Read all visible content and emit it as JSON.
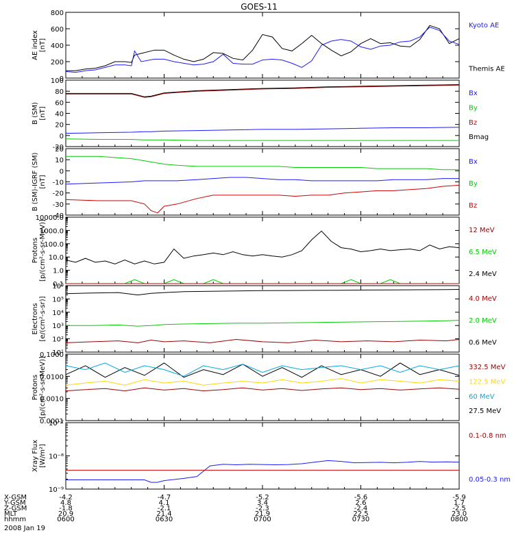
{
  "title": "GOES-11",
  "date_label": "2008 Jan 19",
  "footer": {
    "row_labels": [
      "X-GSM",
      "Y-GSM",
      "Z-GSM",
      "MLT",
      "hhmm"
    ],
    "columns": [
      [
        "-4.2",
        "4.8",
        "-1.8",
        "20.9",
        "0600"
      ],
      [
        "-4.7",
        "4.1",
        "-2.1",
        "21.4",
        "0630"
      ],
      [
        "-5.2",
        "3.4",
        "-2.3",
        "21.9",
        "0700"
      ],
      [
        "-5.6",
        "2.6",
        "-2.4",
        "22.5",
        "0730"
      ],
      [
        "-5.9",
        "1.7",
        "-2.5",
        "23.0",
        "0800"
      ]
    ]
  },
  "colors": {
    "black": "#000000",
    "blue": "#1a1aff",
    "green": "#00cc00",
    "red": "#cc0000",
    "darkred": "#990000",
    "yellow": "#ffd700",
    "cyan": "#00aadd"
  },
  "chart_data": [
    {
      "type": "line",
      "ylabel": [
        "AE index",
        "[nT]"
      ],
      "ylim": [
        0,
        800
      ],
      "yticks": [
        "0",
        "200",
        "400",
        "600",
        "800"
      ],
      "x": [
        0,
        3,
        6,
        9,
        12,
        15,
        18,
        20,
        21,
        23,
        27,
        30,
        33,
        36,
        39,
        42,
        45,
        48,
        51,
        54,
        57,
        60,
        63,
        66,
        69,
        72,
        75,
        78,
        81,
        84,
        87,
        90,
        93,
        96,
        99,
        102,
        105,
        108,
        111,
        114,
        117,
        120
      ],
      "series": [
        {
          "name": "Themis AE",
          "color": "black",
          "values": [
            90,
            90,
            110,
            120,
            150,
            200,
            200,
            190,
            280,
            300,
            340,
            340,
            280,
            230,
            200,
            230,
            310,
            300,
            240,
            220,
            340,
            530,
            500,
            360,
            330,
            420,
            520,
            420,
            340,
            270,
            320,
            420,
            480,
            420,
            430,
            390,
            380,
            470,
            640,
            600,
            420,
            480
          ]
        },
        {
          "name": "Kyoto AE",
          "color": "blue",
          "values": [
            80,
            70,
            90,
            100,
            130,
            160,
            160,
            150,
            330,
            200,
            230,
            230,
            200,
            180,
            160,
            170,
            200,
            290,
            180,
            170,
            170,
            220,
            230,
            220,
            180,
            130,
            210,
            400,
            450,
            470,
            450,
            380,
            350,
            390,
            400,
            440,
            450,
            500,
            620,
            580,
            450,
            410
          ]
        }
      ]
    },
    {
      "type": "line",
      "ylabel": [
        "B (SM)",
        "[nT]"
      ],
      "ylim": [
        -20,
        100
      ],
      "yticks": [
        "-20",
        "0",
        "20",
        "40",
        "60",
        "80",
        "100"
      ],
      "x": [
        0,
        10,
        20,
        24,
        26,
        30,
        40,
        50,
        60,
        70,
        80,
        90,
        100,
        110,
        120
      ],
      "series": [
        {
          "name": "Bmag",
          "color": "black",
          "values": [
            76,
            76,
            76,
            70,
            71,
            77,
            81,
            83,
            85,
            86,
            88,
            89,
            90,
            91,
            92
          ]
        },
        {
          "name": "Bz",
          "color": "darkred",
          "values": [
            75,
            75,
            75,
            69,
            70,
            76,
            80,
            82,
            84,
            85,
            87,
            88,
            89,
            90,
            91
          ]
        },
        {
          "name": "Bx",
          "color": "blue",
          "values": [
            4,
            5,
            6,
            7,
            7,
            8,
            9,
            10,
            11,
            11,
            12,
            13,
            14,
            14,
            15
          ]
        },
        {
          "name": "By",
          "color": "green",
          "values": [
            -6,
            -7,
            -7,
            -8,
            -8,
            -8,
            -9,
            -9,
            -9,
            -9,
            -9,
            -9,
            -9,
            -9,
            -9
          ]
        }
      ],
      "legend": [
        {
          "label": "Bx",
          "color": "blue"
        },
        {
          "label": "By",
          "color": "green"
        },
        {
          "label": "Bz",
          "color": "red"
        },
        {
          "label": "Bmag",
          "color": "black"
        }
      ]
    },
    {
      "type": "line",
      "ylabel": [
        "B (SM)-IGRF (SM)",
        "[nT]"
      ],
      "ylim": [
        -40,
        20
      ],
      "yticks": [
        "-40",
        "-30",
        "-20",
        "-10",
        "0",
        "10",
        "20"
      ],
      "x": [
        0,
        10,
        20,
        24,
        26,
        28,
        30,
        34,
        40,
        45,
        50,
        55,
        60,
        65,
        70,
        75,
        80,
        85,
        90,
        95,
        100,
        105,
        110,
        115,
        120
      ],
      "series": [
        {
          "name": "By",
          "color": "green",
          "values": [
            13,
            13,
            11,
            9,
            8,
            7,
            6,
            5,
            4,
            4,
            4,
            4,
            4,
            4,
            3,
            3,
            3,
            3,
            3,
            2,
            2,
            2,
            2,
            1,
            1
          ]
        },
        {
          "name": "Bx",
          "color": "blue",
          "values": [
            -12,
            -11,
            -10,
            -9,
            -9,
            -9,
            -9,
            -9,
            -8,
            -7,
            -6,
            -6,
            -7,
            -8,
            -8,
            -9,
            -9,
            -9,
            -9,
            -9,
            -8,
            -8,
            -8,
            -7,
            -7
          ]
        },
        {
          "name": "Bz",
          "color": "red",
          "values": [
            -26,
            -27,
            -27,
            -30,
            -36,
            -38,
            -32,
            -30,
            -25,
            -22,
            -22,
            -22,
            -22,
            -22,
            -23,
            -22,
            -22,
            -20,
            -19,
            -18,
            -18,
            -17,
            -16,
            -14,
            -13
          ]
        }
      ],
      "legend": [
        {
          "label": "Bx",
          "color": "blue"
        },
        {
          "label": "By",
          "color": "green"
        },
        {
          "label": "Bz",
          "color": "red"
        }
      ]
    },
    {
      "type": "line",
      "scale": "log",
      "ylabel": [
        "Protons",
        "[p/(cm²-s-sr-MeV)]"
      ],
      "ylim": [
        0.1,
        10000
      ],
      "yticks": [
        "0.1",
        "1.0",
        "10.0",
        "100.0",
        "1000.0",
        "10000.0"
      ],
      "x": [
        0,
        3,
        6,
        9,
        12,
        15,
        18,
        21,
        24,
        27,
        30,
        33,
        36,
        39,
        42,
        45,
        48,
        51,
        54,
        57,
        60,
        63,
        66,
        69,
        72,
        75,
        78,
        81,
        84,
        87,
        90,
        93,
        96,
        99,
        102,
        105,
        108,
        111,
        114,
        117,
        120
      ],
      "series": [
        {
          "name": "2.4 MeV",
          "color": "black",
          "values": [
            6,
            4,
            8,
            4,
            5,
            3,
            6,
            3,
            5,
            3,
            4,
            40,
            8,
            12,
            15,
            20,
            15,
            25,
            15,
            12,
            15,
            12,
            10,
            15,
            30,
            200,
            900,
            150,
            50,
            40,
            25,
            30,
            40,
            30,
            35,
            40,
            30,
            80,
            40,
            60,
            50
          ]
        },
        {
          "name": "6.5 MeV",
          "color": "green",
          "values": [
            0.1,
            0.1,
            0.1,
            0.1,
            0.1,
            0.1,
            0.1,
            0.2,
            0.1,
            0.1,
            0.1,
            0.2,
            0.1,
            0.1,
            0.1,
            0.2,
            0.1,
            0.1,
            0.1,
            0.1,
            0.1,
            0.1,
            0.1,
            0.1,
            0.1,
            0.1,
            0.1,
            0.1,
            0.1,
            0.2,
            0.1,
            0.1,
            0.1,
            0.2,
            0.1,
            0.1,
            0.1,
            0.1,
            0.1,
            0.1,
            0.1
          ]
        },
        {
          "name": "12 MeV",
          "color": "red",
          "values": [
            0.1,
            0.1,
            0.1,
            0.1,
            0.1,
            0.1,
            0.1,
            0.1,
            0.1,
            0.1,
            0.1,
            0.1,
            0.1,
            0.1,
            0.1,
            0.1,
            0.1,
            0.1,
            0.1,
            0.1,
            0.1,
            0.1,
            0.1,
            0.1,
            0.1,
            0.1,
            0.1,
            0.1,
            0.1,
            0.1,
            0.1,
            0.1,
            0.1,
            0.1,
            0.1,
            0.1,
            0.1,
            0.1,
            0.1,
            0.1,
            0.1
          ]
        }
      ],
      "legend": [
        {
          "label": "12 MeV",
          "color": "darkred"
        },
        {
          "label": "6.5 MeV",
          "color": "green"
        },
        {
          "label": "2.4 MeV",
          "color": "black"
        }
      ]
    },
    {
      "type": "line",
      "scale": "log",
      "ylabel": [
        "Electrons",
        "[e/(cm²-s-sr)]"
      ],
      "ylim": [
        10,
        1000000
      ],
      "yticks": [
        "10¹",
        "10²",
        "10³",
        "10⁴",
        "10⁵",
        "10⁶"
      ],
      "x": [
        0,
        8,
        16,
        22,
        26,
        30,
        36,
        44,
        52,
        60,
        68,
        76,
        84,
        92,
        100,
        108,
        116,
        120
      ],
      "series": [
        {
          "name": "0.6 MeV",
          "color": "black",
          "values": [
            250000,
            280000,
            300000,
            200000,
            260000,
            300000,
            350000,
            380000,
            400000,
            420000,
            430000,
            440000,
            450000,
            470000,
            480000,
            490000,
            500000,
            520000
          ]
        },
        {
          "name": "2.0 MeV",
          "color": "green",
          "values": [
            1000,
            1000,
            1100,
            900,
            1000,
            1200,
            1300,
            1400,
            1500,
            1500,
            1600,
            1700,
            1800,
            1900,
            2000,
            2100,
            2300,
            2500
          ]
        },
        {
          "name": "4.0 MeV",
          "color": "darkred",
          "values": [
            50,
            60,
            70,
            50,
            80,
            60,
            70,
            50,
            90,
            60,
            50,
            80,
            60,
            70,
            60,
            80,
            70,
            90
          ]
        }
      ],
      "legend": [
        {
          "label": "4.0 MeV",
          "color": "darkred"
        },
        {
          "label": "2.0 MeV",
          "color": "green"
        },
        {
          "label": "0.6 MeV",
          "color": "black"
        }
      ]
    },
    {
      "type": "line",
      "scale": "log",
      "ylabel": [
        "Protons",
        "[p/(cm²-s-sr-MeV)]"
      ],
      "ylim": [
        0.0001,
        0.1
      ],
      "yticks": [
        "0.0001",
        "0.0010",
        "0.0100",
        "0.1000"
      ],
      "x": [
        0,
        6,
        12,
        18,
        24,
        30,
        36,
        42,
        48,
        54,
        60,
        66,
        72,
        78,
        84,
        90,
        96,
        102,
        108,
        114,
        120
      ],
      "series": [
        {
          "name": "27.5 MeV",
          "color": "black",
          "values": [
            0.012,
            0.03,
            0.009,
            0.025,
            0.011,
            0.04,
            0.009,
            0.02,
            0.012,
            0.035,
            0.01,
            0.025,
            0.009,
            0.03,
            0.012,
            0.02,
            0.01,
            0.04,
            0.012,
            0.02,
            0.011
          ]
        },
        {
          "name": "60 MeV",
          "color": "cyan",
          "values": [
            0.03,
            0.02,
            0.04,
            0.015,
            0.03,
            0.02,
            0.01,
            0.03,
            0.02,
            0.035,
            0.015,
            0.03,
            0.02,
            0.025,
            0.03,
            0.02,
            0.03,
            0.015,
            0.03,
            0.02,
            0.03
          ]
        },
        {
          "name": "122.5 MeV",
          "color": "yellow",
          "values": [
            0.004,
            0.005,
            0.006,
            0.004,
            0.007,
            0.005,
            0.006,
            0.004,
            0.005,
            0.006,
            0.005,
            0.007,
            0.005,
            0.006,
            0.008,
            0.005,
            0.007,
            0.006,
            0.005,
            0.007,
            0.006
          ]
        },
        {
          "name": "332.5 MeV",
          "color": "darkred",
          "values": [
            0.0022,
            0.0025,
            0.0028,
            0.0022,
            0.003,
            0.0024,
            0.0028,
            0.0022,
            0.0025,
            0.003,
            0.0024,
            0.0028,
            0.0023,
            0.0027,
            0.003,
            0.0025,
            0.0028,
            0.0024,
            0.0027,
            0.003,
            0.0026
          ]
        }
      ],
      "legend": [
        {
          "label": "332.5 MeV",
          "color": "darkred"
        },
        {
          "label": "122.5 MeV",
          "color": "yellow"
        },
        {
          "label": "60 MeV",
          "color": "cyan"
        },
        {
          "label": "27.5 MeV",
          "color": "black"
        }
      ]
    },
    {
      "type": "line",
      "scale": "log",
      "ylabel": [
        "Xray Flux",
        "[W/m²]"
      ],
      "ylim": [
        1e-09,
        1e-07
      ],
      "yticks": [
        "10⁻⁹",
        "10⁻⁸",
        "10⁻⁷"
      ],
      "x": [
        0,
        24,
        26,
        28,
        30,
        32,
        36,
        40,
        44,
        48,
        52,
        56,
        60,
        64,
        68,
        72,
        76,
        80,
        84,
        88,
        92,
        96,
        100,
        104,
        108,
        112,
        116,
        120
      ],
      "series": [
        {
          "name": "0.05-0.3 nm",
          "color": "blue",
          "values": [
            1.9e-09,
            1.9e-09,
            1.6e-09,
            1.6e-09,
            1.8e-09,
            1.9e-09,
            2.1e-09,
            2.4e-09,
            5e-09,
            5.6e-09,
            5.4e-09,
            5.6e-09,
            5.5e-09,
            5.4e-09,
            5.5e-09,
            5.8e-09,
            6.5e-09,
            7.2e-09,
            6.8e-09,
            6.2e-09,
            6.3e-09,
            6.4e-09,
            6.2e-09,
            6.4e-09,
            6.8e-09,
            6.5e-09,
            6.6e-09,
            6.5e-09
          ]
        },
        {
          "name": "0.1-0.8 nm",
          "color": "red",
          "values": [
            3.7e-09,
            3.7e-09,
            3.7e-09,
            3.7e-09,
            3.7e-09,
            3.7e-09,
            3.7e-09,
            3.7e-09,
            3.7e-09,
            3.7e-09,
            3.7e-09,
            3.7e-09,
            3.7e-09,
            3.7e-09,
            3.7e-09,
            3.7e-09,
            3.7e-09,
            3.7e-09,
            3.7e-09,
            3.7e-09,
            3.7e-09,
            3.7e-09,
            3.7e-09,
            3.7e-09,
            3.7e-09,
            3.7e-09,
            3.7e-09,
            3.7e-09
          ]
        }
      ],
      "legend": [
        {
          "label": "0.1-0.8 nm",
          "color": "darkred"
        },
        {
          "label": "0.05-0.3 nm",
          "color": "blue"
        }
      ]
    }
  ]
}
